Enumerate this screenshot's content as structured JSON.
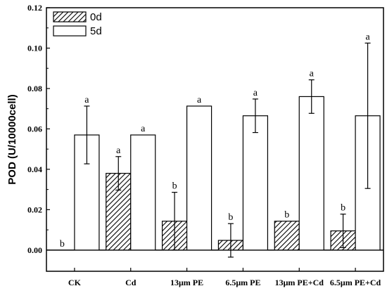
{
  "chart_data": {
    "type": "bar",
    "title": "",
    "xlabel": "",
    "ylabel": "POD (U/10000cell)",
    "ylim": [
      0,
      0.12
    ],
    "yticks": [
      "0.00",
      "0.02",
      "0.04",
      "0.06",
      "0.08",
      "0.10",
      "0.12"
    ],
    "categories": [
      "CK",
      "Cd",
      "13μm PE",
      "6.5μm PE",
      "13μm PE+Cd",
      "6.5μm PE+Cd"
    ],
    "legend_position": "top-left",
    "grid": false,
    "series": [
      {
        "name": "0d",
        "pattern": "hatched",
        "values": [
          0.0,
          0.038,
          0.0143,
          0.0048,
          0.0143,
          0.0095
        ],
        "errors": [
          0.0,
          0.0083,
          0.0143,
          0.0083,
          0.0,
          0.0083
        ],
        "labels": [
          "b",
          "a",
          "b",
          "b",
          "b",
          "b"
        ]
      },
      {
        "name": "5d",
        "pattern": "open",
        "values": [
          0.057,
          0.057,
          0.0713,
          0.0665,
          0.076,
          0.0665
        ],
        "errors": [
          0.0143,
          0.0,
          0.0,
          0.0083,
          0.0083,
          0.036
        ],
        "labels": [
          "a",
          "a",
          "a",
          "a",
          "a",
          "a"
        ]
      }
    ]
  }
}
